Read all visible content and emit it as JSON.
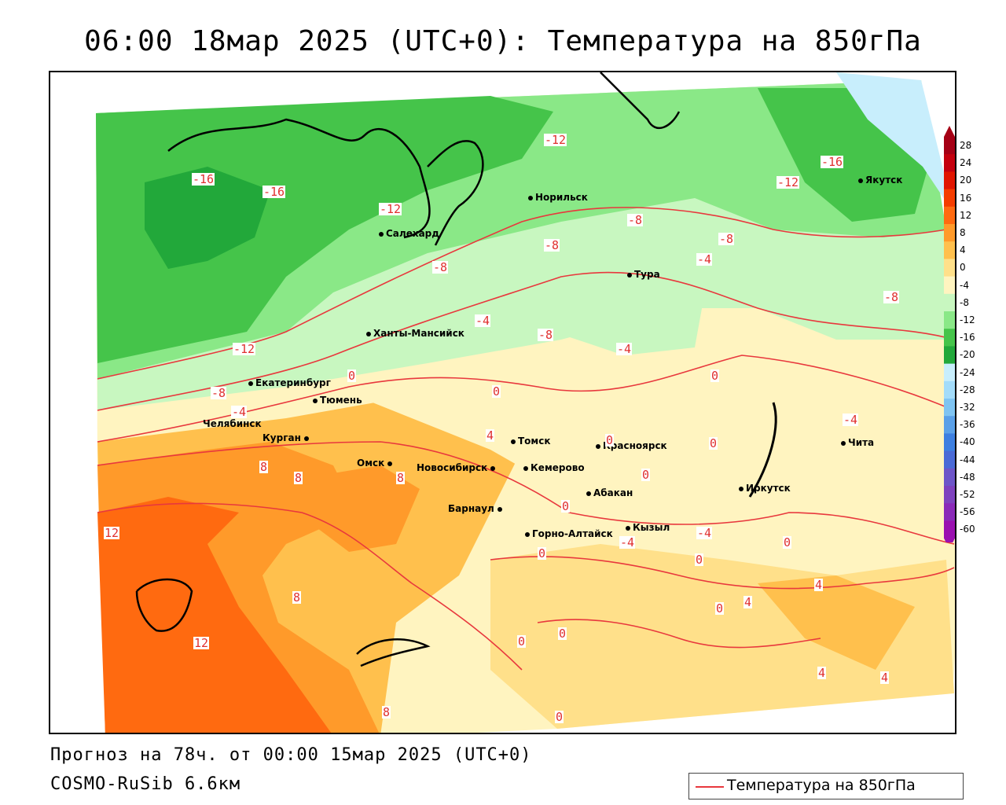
{
  "title": "06:00 18мар 2025 (UTC+0): Температура на 850гПа",
  "footer": {
    "forecast": "Прогноз на 78ч. от 00:00 15мар 2025 (UTC+0)",
    "model": "COSMO-RuSib 6.6км"
  },
  "legend": {
    "label": "Температура на 850гПа",
    "line_color": "#e8383d"
  },
  "colorbar": {
    "labels": [
      "28",
      "24",
      "20",
      "16",
      "12",
      "8",
      "4",
      "0",
      "-4",
      "-8",
      "-12",
      "-16",
      "-20",
      "-24",
      "-28",
      "-32",
      "-36",
      "-40",
      "-44",
      "-48",
      "-52",
      "-56",
      "-60"
    ],
    "colors": [
      "#a50015",
      "#c4000e",
      "#e01500",
      "#f53d00",
      "#ff6a10",
      "#ff9a2a",
      "#ffc04d",
      "#ffe08a",
      "#fff4c0",
      "#c8f7c0",
      "#8ae887",
      "#45c44a",
      "#22a83a",
      "#c8eefc",
      "#a3dcfa",
      "#7fc4f2",
      "#5aa0e8",
      "#3d7fe0",
      "#4a6ad6",
      "#6d55c8",
      "#7e42be",
      "#8a2ab8",
      "#9a10b0"
    ]
  },
  "cities": [
    {
      "name": "Норильск"
    },
    {
      "name": "Якутск"
    },
    {
      "name": "Салехард"
    },
    {
      "name": "Тура"
    },
    {
      "name": "Ханты-Мансийск"
    },
    {
      "name": "Екатеринбург"
    },
    {
      "name": "Тюмень"
    },
    {
      "name": "Челябинск"
    },
    {
      "name": "Курган"
    },
    {
      "name": "Омск"
    },
    {
      "name": "Новосибирск"
    },
    {
      "name": "Томск"
    },
    {
      "name": "Кемерово"
    },
    {
      "name": "Красноярск"
    },
    {
      "name": "Барнаул"
    },
    {
      "name": "Абакан"
    },
    {
      "name": "Горно-Алтайск"
    },
    {
      "name": "Кызыл"
    },
    {
      "name": "Иркутск"
    },
    {
      "name": "Чита"
    }
  ],
  "contour_labels": [
    "-12",
    "-16",
    "-16",
    "-16",
    "-12",
    "-12",
    "-8",
    "-8",
    "-8",
    "-8",
    "-8",
    "-4",
    "-4",
    "-4",
    "-12",
    "-8",
    "-4",
    "0",
    "0",
    "0",
    "0",
    "0",
    "-4",
    "4",
    "0",
    "8",
    "8",
    "8",
    "12",
    "8",
    "12",
    "0",
    "-4",
    "0",
    "0",
    "0",
    "0",
    "4",
    "4",
    "0",
    "0",
    "4",
    "4",
    "-8",
    "-4",
    "8",
    "0"
  ]
}
